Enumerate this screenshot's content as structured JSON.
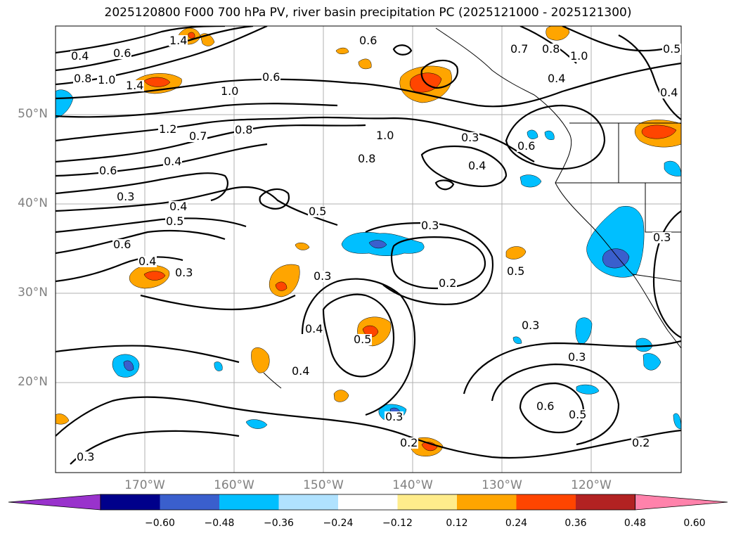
{
  "title": "2025120800 F000 700 hPa PV, river basin precipitation PC (2025121000 - 2025121300)",
  "lat_labels": [
    "50°N",
    "40°N",
    "30°N",
    "20°N"
  ],
  "lon_labels": [
    "170°W",
    "160°W",
    "150°W",
    "140°W",
    "130°W",
    "120°W"
  ],
  "contour_labels": [
    "0.4",
    "0.6",
    "0.8",
    "1.0",
    "1.4",
    "1.4",
    "0.6",
    "0.6",
    "1.0",
    "0.7",
    "0.8",
    "1.0",
    "0.4",
    "0.5",
    "0.4",
    "1.2",
    "0.7",
    "0.8",
    "1.0",
    "0.3",
    "0.6",
    "0.4",
    "0.8",
    "0.6",
    "0.4",
    "0.3",
    "0.5",
    "0.6",
    "0.5",
    "0.3",
    "0.4",
    "0.3",
    "0.3",
    "0.2",
    "0.5",
    "0.4",
    "0.5",
    "0.3",
    "0.4",
    "0.3",
    "0.3",
    "0.6",
    "0.5",
    "0.2",
    "0.2",
    "0.3",
    "0.4",
    "0.3"
  ],
  "colorbar": {
    "colors": [
      "#9932cc",
      "#00008b",
      "#3a5fcd",
      "#00bfff",
      "#b0e2ff",
      "#ffffff",
      "#ffec8b",
      "#ffa500",
      "#ff4500",
      "#b22222",
      "#ff82ab"
    ],
    "ticks": [
      "−0.60",
      "−0.48",
      "−0.36",
      "−0.24",
      "−0.12",
      "0.12",
      "0.24",
      "0.36",
      "0.48",
      "0.60"
    ]
  }
}
